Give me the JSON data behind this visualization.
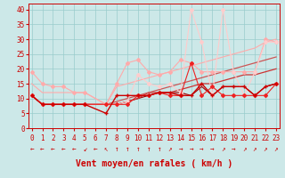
{
  "title": "",
  "xlabel": "Vent moyen/en rafales ( km/h )",
  "background_color": "#cce8e8",
  "grid_color": "#99cccc",
  "x_ticks": [
    0,
    1,
    2,
    3,
    4,
    5,
    6,
    7,
    8,
    9,
    10,
    11,
    12,
    13,
    14,
    15,
    16,
    17,
    18,
    19,
    20,
    21,
    22,
    23
  ],
  "y_ticks": [
    0,
    5,
    10,
    15,
    20,
    25,
    30,
    35,
    40
  ],
  "xlim": [
    -0.3,
    23.3
  ],
  "ylim": [
    0,
    42
  ],
  "series": [
    {
      "x": [
        0,
        1,
        2,
        3,
        4,
        5,
        7,
        8,
        9,
        10,
        11,
        12,
        13,
        14,
        15,
        16,
        17,
        18,
        19,
        20,
        21,
        22,
        23
      ],
      "y": [
        19,
        15,
        14,
        14,
        12,
        12,
        8,
        15,
        22,
        23,
        19,
        18,
        19,
        23,
        22,
        19,
        19,
        19,
        19,
        19,
        19,
        30,
        29
      ],
      "color": "#ffaaaa",
      "lw": 0.8,
      "marker": "D",
      "ms": 2.0,
      "zorder": 3
    },
    {
      "x": [
        0,
        1,
        2,
        3,
        4,
        5,
        7,
        8,
        9,
        10,
        11,
        12,
        13,
        14,
        15,
        16,
        17,
        18,
        19,
        20,
        21,
        22,
        23
      ],
      "y": [
        11,
        8,
        8,
        8,
        8,
        8,
        5,
        11,
        11,
        11,
        11,
        12,
        12,
        11,
        11,
        15,
        11,
        14,
        14,
        14,
        11,
        14,
        15
      ],
      "color": "#cc0000",
      "lw": 1.0,
      "marker": "+",
      "ms": 3.0,
      "zorder": 5
    },
    {
      "x": [
        0,
        1,
        2,
        3,
        4,
        5,
        7,
        8,
        9,
        10,
        11,
        12,
        13,
        14,
        15,
        16,
        17,
        18,
        19,
        20,
        21,
        22,
        23
      ],
      "y": [
        11,
        8,
        8,
        8,
        8,
        8,
        8,
        8,
        8,
        11,
        11,
        12,
        11,
        11,
        22,
        11,
        14,
        11,
        11,
        11,
        11,
        11,
        15
      ],
      "color": "#ee2222",
      "lw": 0.8,
      "marker": "D",
      "ms": 2.0,
      "zorder": 4
    },
    {
      "x": [
        0,
        1,
        2,
        3,
        4,
        5,
        7,
        8,
        9,
        10,
        11,
        12,
        13,
        14,
        15,
        16,
        17,
        18,
        19,
        20,
        21,
        22,
        23
      ],
      "y": [
        11,
        8,
        8,
        8,
        8,
        8,
        8,
        8,
        9,
        10,
        11,
        12,
        12,
        12,
        11,
        14,
        11,
        14,
        14,
        14,
        11,
        14,
        15
      ],
      "color": "#990000",
      "lw": 0.8,
      "marker": null,
      "ms": 0,
      "zorder": 2
    },
    {
      "x": [
        0,
        1,
        2,
        3,
        4,
        5,
        7,
        8,
        9,
        10,
        11,
        12,
        13,
        14,
        15,
        16,
        17,
        18,
        19,
        20,
        21,
        22,
        23
      ],
      "y": [
        11,
        8,
        8,
        8,
        8,
        8,
        8,
        8,
        9,
        10,
        12,
        12,
        12,
        13,
        14,
        15,
        15,
        16,
        17,
        18,
        18,
        19,
        20
      ],
      "color": "#cc3333",
      "lw": 0.9,
      "marker": null,
      "ms": 0,
      "zorder": 2
    },
    {
      "x": [
        0,
        1,
        2,
        3,
        4,
        5,
        7,
        8,
        9,
        10,
        11,
        12,
        13,
        14,
        15,
        16,
        17,
        18,
        19,
        20,
        21,
        22,
        23
      ],
      "y": [
        11,
        8,
        8,
        8,
        8,
        8,
        8,
        9,
        10,
        11,
        12,
        13,
        14,
        15,
        16,
        17,
        18,
        19,
        20,
        21,
        22,
        23,
        24
      ],
      "color": "#cc5555",
      "lw": 0.9,
      "marker": null,
      "ms": 0,
      "zorder": 2
    },
    {
      "x": [
        0,
        1,
        2,
        3,
        4,
        5,
        7,
        8,
        9,
        10,
        11,
        12,
        13,
        14,
        15,
        16,
        17,
        18,
        19,
        20,
        21,
        22,
        23
      ],
      "y": [
        15,
        12,
        12,
        12,
        12,
        12,
        8,
        14,
        15,
        16,
        17,
        18,
        19,
        20,
        21,
        22,
        23,
        24,
        25,
        26,
        27,
        29,
        30
      ],
      "color": "#ffaaaa",
      "lw": 0.8,
      "marker": null,
      "ms": 0,
      "zorder": 2
    },
    {
      "x": [
        0,
        1,
        2,
        3,
        4,
        5,
        7,
        8,
        9,
        10,
        11,
        12,
        13,
        14,
        15,
        16,
        17,
        18,
        19,
        20,
        21,
        22,
        23
      ],
      "y": [
        11,
        8,
        8,
        8,
        8,
        8,
        8,
        8,
        9,
        18,
        15,
        14,
        15,
        12,
        40,
        29,
        11,
        40,
        19,
        11,
        19,
        29,
        29
      ],
      "color": "#ffcccc",
      "lw": 0.8,
      "marker": "D",
      "ms": 2.0,
      "zorder": 3
    }
  ],
  "wind_arrows": [
    "←",
    "←",
    "←",
    "←",
    "←",
    "↙",
    "←",
    "↖",
    "↑",
    "↑",
    "↑",
    "↑",
    "↑",
    "↗",
    "→",
    "→",
    "→",
    "→",
    "↗",
    "→",
    "↗",
    "↗",
    "↗",
    "↗"
  ],
  "text_color": "#cc0000",
  "tick_fontsize": 5.5,
  "xlabel_fontsize": 7
}
